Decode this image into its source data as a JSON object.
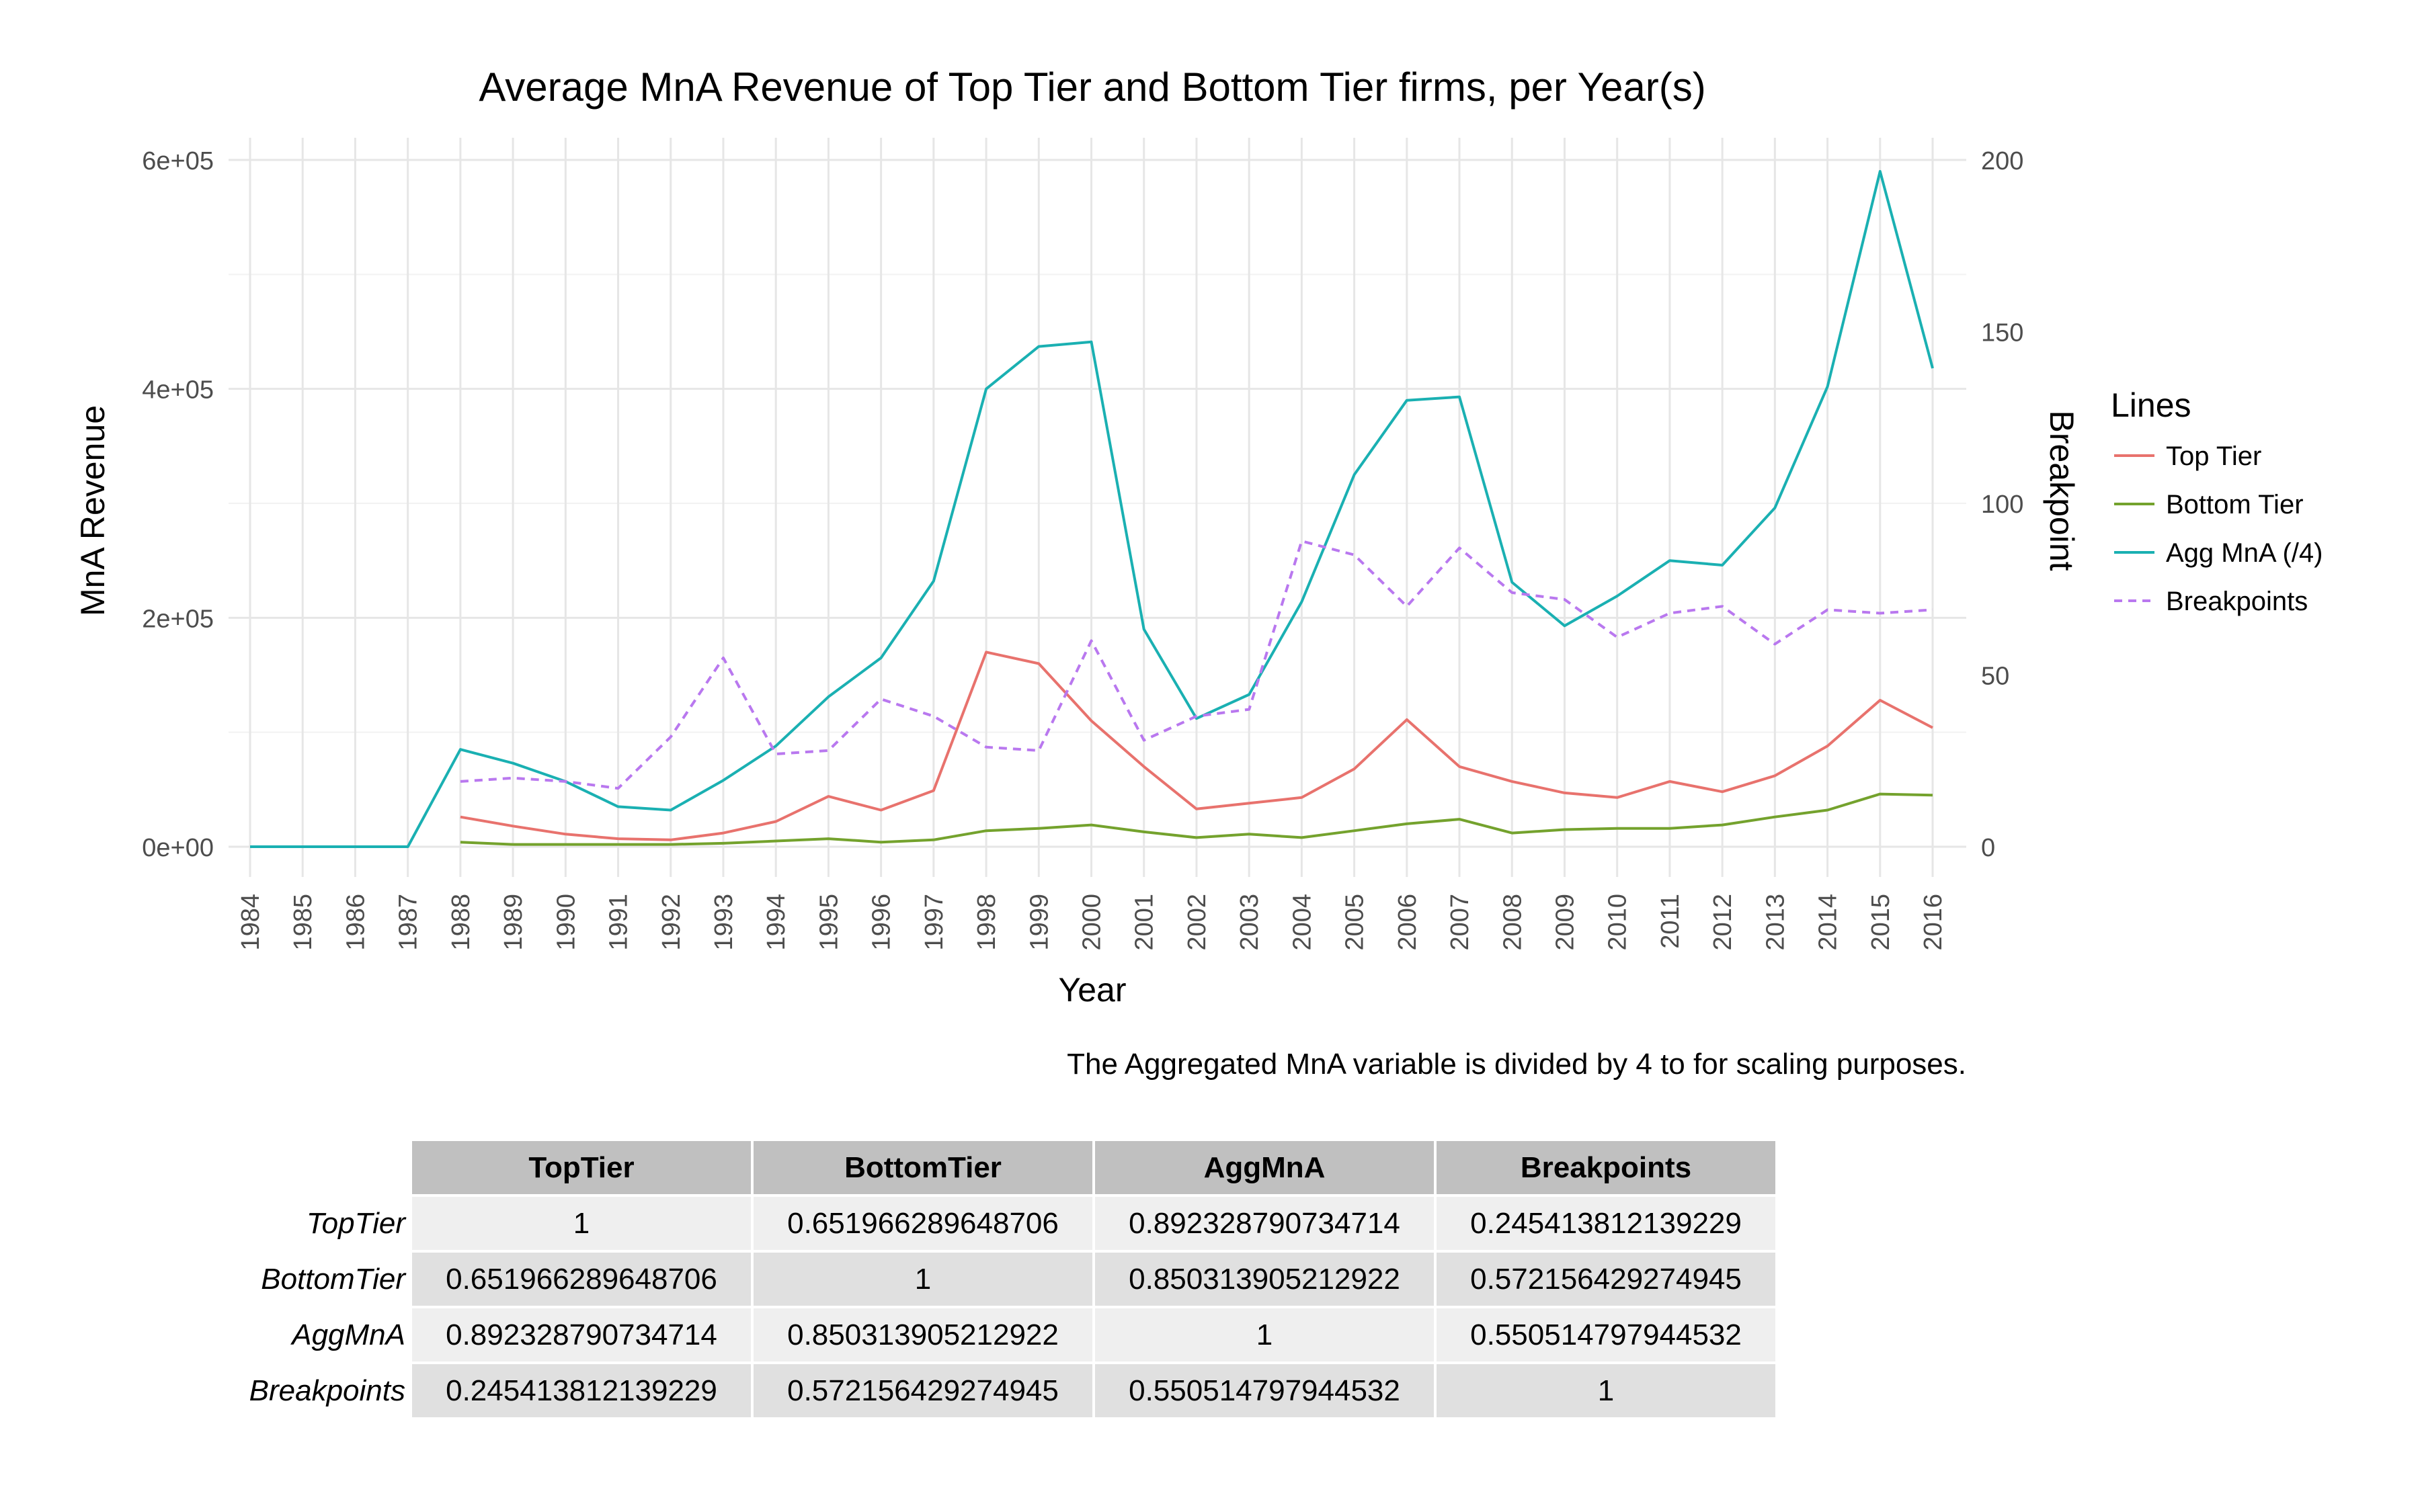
{
  "colors": {
    "top_tier": "#E8726D",
    "bottom_tier": "#74A22D",
    "agg_mna": "#1AB0B2",
    "breakpoints": "#B978EF",
    "grid_major": "#e6e6e6",
    "grid_minor": "#f2f2f2",
    "axis_text": "#4d4d4d",
    "table_header_bg": "#c0c0c0",
    "table_row_light": "#efefef",
    "table_row_dark": "#e0e0e0"
  },
  "chart_data": {
    "type": "line",
    "title": "Average MnA Revenue of Top Tier and Bottom Tier firms, per Year(s)",
    "xlabel": "Year",
    "ylabel": "MnA Revenue",
    "y2label": "Breakpoint",
    "caption": "The Aggregated MnA variable is divided by 4 to for scaling purposes.",
    "xlim": [
      1984,
      2016
    ],
    "ylim": [
      0,
      600000
    ],
    "y2lim": [
      0,
      200
    ],
    "x_ticks": [
      "1984",
      "1985",
      "1986",
      "1987",
      "1988",
      "1989",
      "1990",
      "1991",
      "1992",
      "1993",
      "1994",
      "1995",
      "1996",
      "1997",
      "1998",
      "1999",
      "2000",
      "2001",
      "2002",
      "2003",
      "2004",
      "2005",
      "2006",
      "2007",
      "2008",
      "2009",
      "2010",
      "2011",
      "2012",
      "2013",
      "2014",
      "2015",
      "2016"
    ],
    "y_ticks": [
      {
        "value": 0,
        "label": "0e+00"
      },
      {
        "value": 200000,
        "label": "2e+05"
      },
      {
        "value": 400000,
        "label": "4e+05"
      },
      {
        "value": 600000,
        "label": "6e+05"
      }
    ],
    "y2_ticks": [
      {
        "value": 0,
        "label": "0"
      },
      {
        "value": 50,
        "label": "50"
      },
      {
        "value": 100,
        "label": "100"
      },
      {
        "value": 150,
        "label": "150"
      },
      {
        "value": 200,
        "label": "200"
      }
    ],
    "grid": true,
    "legend": {
      "title": "Lines",
      "position": "right"
    },
    "series": [
      {
        "name": "Top Tier",
        "color_key": "top_tier",
        "dashed": false,
        "axis": "left",
        "x": [
          1988,
          1989,
          1990,
          1991,
          1992,
          1993,
          1994,
          1995,
          1996,
          1997,
          1998,
          1999,
          2000,
          2001,
          2002,
          2003,
          2004,
          2005,
          2006,
          2007,
          2008,
          2009,
          2010,
          2011,
          2012,
          2013,
          2014,
          2015,
          2016
        ],
        "values": [
          26000,
          18000,
          11000,
          7000,
          6000,
          12000,
          22000,
          44000,
          32000,
          49000,
          170000,
          160000,
          110000,
          70000,
          33000,
          38000,
          43000,
          68000,
          111000,
          70000,
          57000,
          47000,
          43000,
          57000,
          48000,
          62000,
          88000,
          128000,
          104000
        ]
      },
      {
        "name": "Bottom Tier",
        "color_key": "bottom_tier",
        "dashed": false,
        "axis": "left",
        "x": [
          1988,
          1989,
          1990,
          1991,
          1992,
          1993,
          1994,
          1995,
          1996,
          1997,
          1998,
          1999,
          2000,
          2001,
          2002,
          2003,
          2004,
          2005,
          2006,
          2007,
          2008,
          2009,
          2010,
          2011,
          2012,
          2013,
          2014,
          2015,
          2016
        ],
        "values": [
          4000,
          2000,
          2000,
          2000,
          2000,
          3000,
          5000,
          7000,
          4000,
          6000,
          14000,
          16000,
          19000,
          13000,
          8000,
          11000,
          8000,
          14000,
          20000,
          24000,
          12000,
          15000,
          16000,
          16000,
          19000,
          26000,
          32000,
          46000,
          45000
        ]
      },
      {
        "name": "Agg MnA (/4)",
        "color_key": "agg_mna",
        "dashed": false,
        "axis": "left",
        "x": [
          1984,
          1985,
          1986,
          1987,
          1988,
          1989,
          1990,
          1991,
          1992,
          1993,
          1994,
          1995,
          1996,
          1997,
          1998,
          1999,
          2000,
          2001,
          2002,
          2003,
          2004,
          2005,
          2006,
          2007,
          2008,
          2009,
          2010,
          2011,
          2012,
          2013,
          2014,
          2015,
          2016
        ],
        "values": [
          0,
          0,
          0,
          0,
          85000,
          73000,
          57000,
          35000,
          32000,
          58000,
          88000,
          131000,
          165000,
          232000,
          400000,
          437000,
          441000,
          190000,
          112000,
          133000,
          214000,
          325000,
          390000,
          393000,
          231000,
          193000,
          219000,
          250000,
          246000,
          296000,
          402000,
          590000,
          418000
        ]
      },
      {
        "name": "Breakpoints",
        "color_key": "breakpoints",
        "dashed": true,
        "axis": "right",
        "x": [
          1988,
          1989,
          1990,
          1991,
          1992,
          1993,
          1994,
          1995,
          1996,
          1997,
          1998,
          1999,
          2000,
          2001,
          2002,
          2003,
          2004,
          2005,
          2006,
          2007,
          2008,
          2009,
          2010,
          2011,
          2012,
          2013,
          2014,
          2015,
          2016
        ],
        "values": [
          19,
          20,
          19,
          17,
          32,
          55,
          27,
          28,
          43,
          38,
          29,
          28,
          60,
          31,
          38,
          40,
          89,
          85,
          70,
          87,
          74,
          72,
          61,
          68,
          70,
          59,
          69,
          68,
          69
        ]
      }
    ]
  },
  "table": {
    "columns": [
      "TopTier",
      "BottomTier",
      "AggMnA",
      "Breakpoints"
    ],
    "rows": [
      {
        "label": "TopTier",
        "values": [
          "1",
          "0.651966289648706",
          "0.892328790734714",
          "0.245413812139229"
        ]
      },
      {
        "label": "BottomTier",
        "values": [
          "0.651966289648706",
          "1",
          "0.850313905212922",
          "0.572156429274945"
        ]
      },
      {
        "label": "AggMnA",
        "values": [
          "0.892328790734714",
          "0.850313905212922",
          "1",
          "0.550514797944532"
        ]
      },
      {
        "label": "Breakpoints",
        "values": [
          "0.245413812139229",
          "0.572156429274945",
          "0.550514797944532",
          "1"
        ]
      }
    ]
  }
}
